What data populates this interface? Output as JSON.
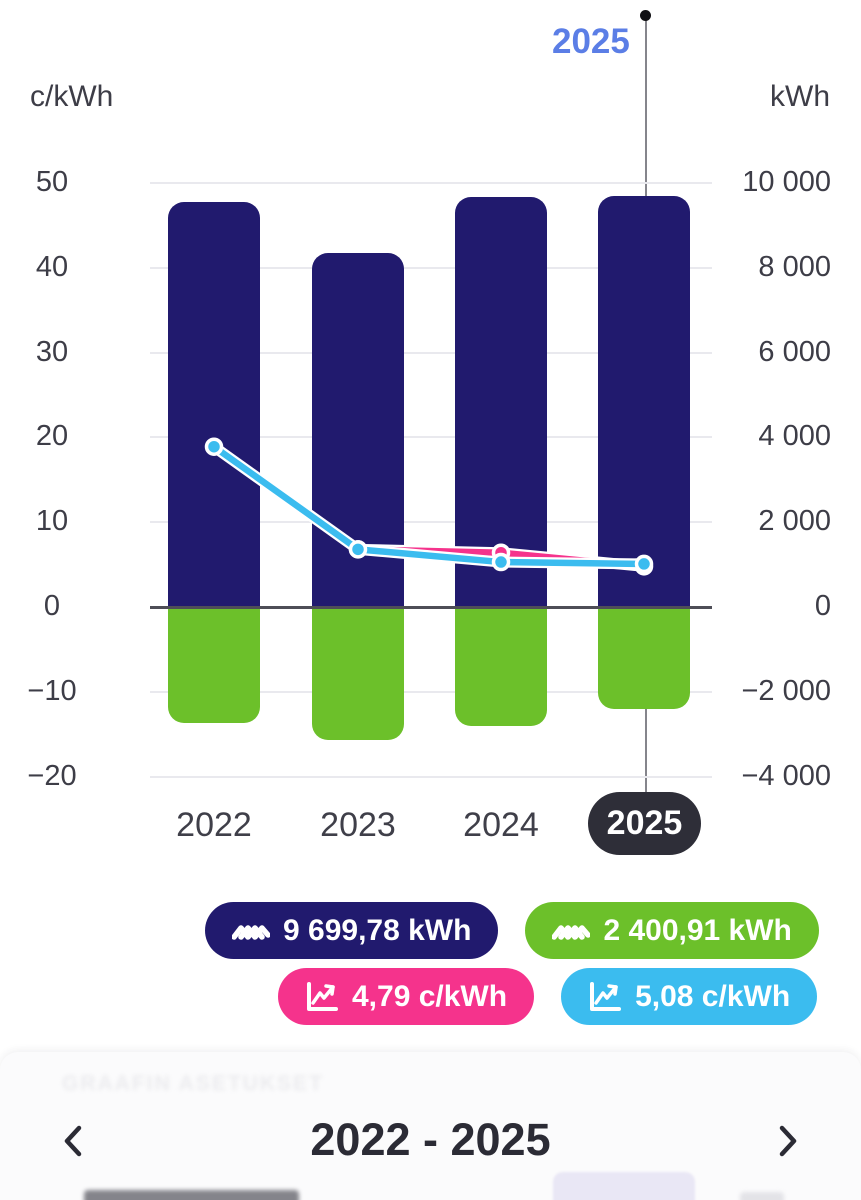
{
  "top_marker": {
    "label": "2025"
  },
  "axes": {
    "left": {
      "title": "c/kWh",
      "tick_labels": [
        "50",
        "40",
        "30",
        "20",
        "10",
        "0",
        "−10",
        "−20"
      ]
    },
    "right": {
      "title": "kWh",
      "tick_labels": [
        "10 000",
        "8 000",
        "6 000",
        "4 000",
        "2 000",
        "0",
        "−2 000",
        "−4 000"
      ]
    }
  },
  "x_axis": {
    "labels": [
      "2022",
      "2023",
      "2024",
      "2025"
    ],
    "selected": "2025"
  },
  "legend": [
    {
      "id": "consumption-kwh",
      "label": "9 699,78 kWh",
      "color": "#211a6e",
      "icon": "wave-zigzag-icon"
    },
    {
      "id": "returned-kwh",
      "label": "2 400,91 kWh",
      "color": "#6cc02a",
      "icon": "wave-zigzag-icon"
    },
    {
      "id": "price-average",
      "label": "4,79 c/kWh",
      "color": "#f5338c",
      "icon": "line-chart-icon"
    },
    {
      "id": "price-spot",
      "label": "5,08 c/kWh",
      "color": "#3bbcef",
      "icon": "line-chart-icon"
    }
  ],
  "footer": {
    "settings_label": "GRAAFIN ASETUKSET",
    "range_label": "2022 - 2025"
  },
  "colors": {
    "bar_positive": "#211a6e",
    "bar_negative": "#6cc02a",
    "line_pink": "#f5338c",
    "line_blue": "#3bbcef",
    "selected_pill": "#2e2e38",
    "top_label": "#5b7ee6",
    "gridline": "#e9e9ee",
    "zero_line": "#4e4e57"
  },
  "chart_data": {
    "type": "bar+line combo",
    "categories": [
      "2022",
      "2023",
      "2024",
      "2025"
    ],
    "series": [
      {
        "name": "consumption_kwh",
        "type": "bar",
        "axis": "right",
        "color": "#211a6e",
        "values": [
          9550,
          8350,
          9670,
          9699.78
        ]
      },
      {
        "name": "returned_kwh",
        "type": "bar",
        "axis": "right",
        "color": "#6cc02a",
        "values": [
          -2740,
          -3140,
          -2810,
          -2400.91
        ]
      },
      {
        "name": "price_pink_c_per_kwh",
        "type": "line",
        "axis": "left",
        "color": "#f5338c",
        "values": [
          null,
          6.8,
          6.4,
          4.79
        ]
      },
      {
        "name": "price_blue_c_per_kwh",
        "type": "line",
        "axis": "left",
        "color": "#3bbcef",
        "values": [
          18.9,
          6.8,
          5.3,
          5.08
        ]
      }
    ],
    "left_axis": {
      "label": "c/kWh",
      "min": -20,
      "max": 50,
      "step": 10
    },
    "right_axis": {
      "label": "kWh",
      "min": -4000,
      "max": 10000,
      "step": 2000
    },
    "selected_category": "2025",
    "grid": true,
    "legend_position": "bottom"
  }
}
